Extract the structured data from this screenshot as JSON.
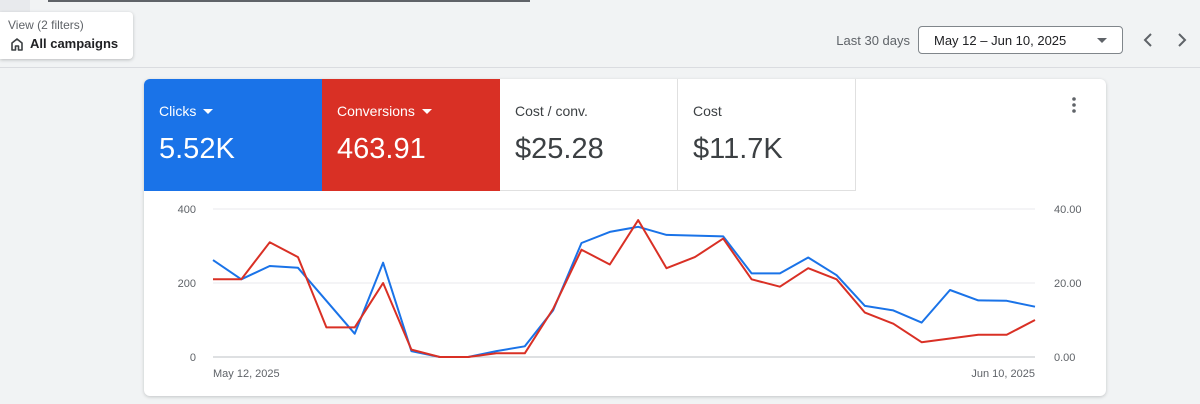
{
  "view": {
    "filters_label": "View (2 filters)",
    "scope_label": "All campaigns",
    "icon": "home-icon"
  },
  "date_range": {
    "label": "Last 30 days",
    "value": "May 12 – Jun 10, 2025"
  },
  "tiles": [
    {
      "label": "Clicks",
      "value": "5.52K",
      "color": "#1a73e8"
    },
    {
      "label": "Conversions",
      "value": "463.91",
      "color": "#d93025"
    },
    {
      "label": "Cost / conv.",
      "value": "$25.28"
    },
    {
      "label": "Cost",
      "value": "$11.7K"
    }
  ],
  "chart_data": {
    "type": "line",
    "x_labels": [
      "May 12, 2025",
      "Jun 10, 2025"
    ],
    "y_left": {
      "ticks": [
        "400",
        "200",
        "0"
      ],
      "ylim": [
        0,
        400
      ]
    },
    "y_right": {
      "ticks": [
        "40.00",
        "20.00",
        "0.00"
      ],
      "ylim": [
        0,
        40
      ]
    },
    "grid": true,
    "series": [
      {
        "axis": "left",
        "color": "#1a73e8",
        "values": [
          262,
          210,
          246,
          241,
          152,
          63,
          255,
          16,
          0,
          0,
          16,
          29,
          126,
          308,
          338,
          352,
          330,
          328,
          326,
          226,
          226,
          269,
          221,
          138,
          126,
          93,
          181,
          153,
          152,
          136
        ]
      },
      {
        "axis": "right",
        "color": "#d93025",
        "values": [
          21,
          21,
          31,
          27,
          8,
          8,
          20,
          2,
          0,
          0,
          1,
          1,
          13,
          29,
          25,
          37,
          24,
          27,
          32,
          21,
          19,
          24,
          21,
          12,
          9,
          4,
          5,
          6,
          6,
          10
        ]
      }
    ]
  }
}
